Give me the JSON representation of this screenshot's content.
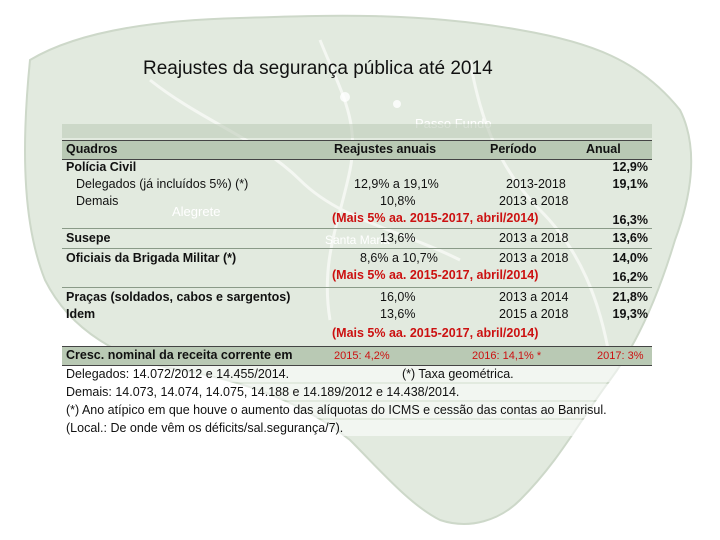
{
  "title": "Reajustes da segurança pública até 2014",
  "map_labels": {
    "passo_fundo": "Passo Fundo",
    "alegrete": "Alegrete",
    "santa_maria": "Santa Maria"
  },
  "table": {
    "headers": {
      "quadros": "Quadros",
      "reajustes": "Reajustes anuais",
      "periodo": "Período",
      "anual": "Anual"
    },
    "rows": [
      {
        "quadro": "Polícia Civil",
        "reajuste": "",
        "periodo": "",
        "anual": "12,9%"
      },
      {
        "quadro": "Delegados (já incluídos 5%) (*)",
        "reajuste": "12,9% a 19,1%",
        "periodo": "2013-2018",
        "anual": "19,1%"
      },
      {
        "quadro": "Demais",
        "reajuste": "10,8%",
        "periodo": "2013 a 2018",
        "anual": ""
      },
      {
        "quadro": "",
        "reajuste": "(Mais 5% aa. 2015-2017, abril/2014)",
        "periodo": "",
        "anual": "16,3%"
      },
      {
        "quadro": "Susepe",
        "reajuste": "13,6%",
        "periodo": "2013 a 2018",
        "anual": "13,6%"
      },
      {
        "quadro": "Oficiais da Brigada Militar (*)",
        "reajuste": "8,6% a 10,7%",
        "periodo": "2013 a 2018",
        "anual": "14,0%"
      },
      {
        "quadro": "",
        "reajuste": "(Mais 5% aa. 2015-2017, abril/2014)",
        "periodo": "",
        "anual": "16,2%"
      },
      {
        "quadro": "Praças (soldados, cabos e sargentos)",
        "reajuste": "16,0%",
        "periodo": "2013 a 2014",
        "anual": "21,8%"
      },
      {
        "quadro": "Idem",
        "reajuste": "13,6%",
        "periodo": "2015 a 2018",
        "anual": "19,3%"
      },
      {
        "quadro": "",
        "reajuste": "(Mais 5% aa. 2015-2017, abril/2014)",
        "periodo": "",
        "anual": ""
      }
    ],
    "cresc": {
      "label": "Cresc. nominal da receita corrente em",
      "v2015": "2015: 4,2%",
      "v2016": "2016: 14,1% *",
      "v2017": "2017: 3%"
    },
    "notes": {
      "delegados": "Delegados: 14.072/2012 e 14.455/2014.",
      "taxa": "(*) Taxa geométrica.",
      "demais": "Demais: 14.073, 14.074, 14.075, 14.188 e 14.189/2012 e 14.438/2014.",
      "atipico": "(*) Ano atípico em que houve o aumento das alíquotas do ICMS e cessão das contas ao Banrisul.",
      "local": "(Local.: De onde vêm os déficits/sal.segurança/7)."
    }
  }
}
